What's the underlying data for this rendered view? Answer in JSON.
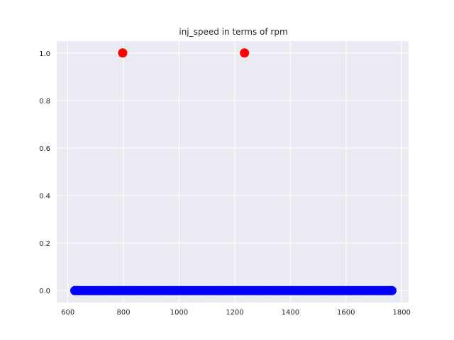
{
  "chart_data": {
    "type": "scatter",
    "title": "inj_speed in terms of rpm",
    "xlabel": "",
    "ylabel": "",
    "xlim": [
      560,
      1825
    ],
    "ylim": [
      -0.05,
      1.05
    ],
    "x_ticks": [
      600,
      800,
      1000,
      1200,
      1400,
      1600,
      1800
    ],
    "y_ticks": [
      0.0,
      0.2,
      0.4,
      0.6,
      0.8,
      1.0
    ],
    "grid": true,
    "background": "#eaeaf2",
    "series": [
      {
        "color": "#0000ff",
        "points": [
          [
            625,
            0
          ],
          [
            630,
            0
          ],
          [
            635,
            0
          ],
          [
            640,
            0
          ],
          [
            648,
            0
          ],
          [
            655,
            0
          ],
          [
            662,
            0
          ],
          [
            670,
            0
          ],
          [
            678,
            0
          ],
          [
            685,
            0
          ],
          [
            692,
            0
          ],
          [
            700,
            0
          ],
          [
            708,
            0
          ],
          [
            715,
            0
          ],
          [
            722,
            0
          ],
          [
            730,
            0
          ],
          [
            738,
            0
          ],
          [
            745,
            0
          ],
          [
            752,
            0
          ],
          [
            760,
            0
          ],
          [
            768,
            0
          ],
          [
            775,
            0
          ],
          [
            782,
            0
          ],
          [
            790,
            0
          ],
          [
            798,
            0
          ],
          [
            805,
            0
          ],
          [
            812,
            0
          ],
          [
            820,
            0
          ],
          [
            828,
            0
          ],
          [
            835,
            0
          ],
          [
            842,
            0
          ],
          [
            850,
            0
          ],
          [
            858,
            0
          ],
          [
            865,
            0
          ],
          [
            872,
            0
          ],
          [
            880,
            0
          ],
          [
            888,
            0
          ],
          [
            895,
            0
          ],
          [
            902,
            0
          ],
          [
            910,
            0
          ],
          [
            918,
            0
          ],
          [
            925,
            0
          ],
          [
            932,
            0
          ],
          [
            940,
            0
          ],
          [
            948,
            0
          ],
          [
            955,
            0
          ],
          [
            962,
            0
          ],
          [
            970,
            0
          ],
          [
            978,
            0
          ],
          [
            985,
            0
          ],
          [
            992,
            0
          ],
          [
            1000,
            0
          ],
          [
            1008,
            0
          ],
          [
            1015,
            0
          ],
          [
            1022,
            0
          ],
          [
            1030,
            0
          ],
          [
            1038,
            0
          ],
          [
            1045,
            0
          ],
          [
            1052,
            0
          ],
          [
            1060,
            0
          ],
          [
            1068,
            0
          ],
          [
            1075,
            0
          ],
          [
            1082,
            0
          ],
          [
            1090,
            0
          ],
          [
            1098,
            0
          ],
          [
            1105,
            0
          ],
          [
            1112,
            0
          ],
          [
            1120,
            0
          ],
          [
            1128,
            0
          ],
          [
            1135,
            0
          ],
          [
            1142,
            0
          ],
          [
            1150,
            0
          ],
          [
            1158,
            0
          ],
          [
            1165,
            0
          ],
          [
            1172,
            0
          ],
          [
            1180,
            0
          ],
          [
            1188,
            0
          ],
          [
            1195,
            0
          ],
          [
            1202,
            0
          ],
          [
            1210,
            0
          ],
          [
            1218,
            0
          ],
          [
            1225,
            0
          ],
          [
            1232,
            0
          ],
          [
            1240,
            0
          ],
          [
            1248,
            0
          ],
          [
            1255,
            0
          ],
          [
            1262,
            0
          ],
          [
            1270,
            0
          ],
          [
            1278,
            0
          ],
          [
            1285,
            0
          ],
          [
            1292,
            0
          ],
          [
            1300,
            0
          ],
          [
            1308,
            0
          ],
          [
            1315,
            0
          ],
          [
            1322,
            0
          ],
          [
            1330,
            0
          ],
          [
            1338,
            0
          ],
          [
            1345,
            0
          ],
          [
            1352,
            0
          ],
          [
            1360,
            0
          ],
          [
            1368,
            0
          ],
          [
            1375,
            0
          ],
          [
            1382,
            0
          ],
          [
            1390,
            0
          ],
          [
            1398,
            0
          ],
          [
            1405,
            0
          ],
          [
            1412,
            0
          ],
          [
            1420,
            0
          ],
          [
            1428,
            0
          ],
          [
            1435,
            0
          ],
          [
            1442,
            0
          ],
          [
            1450,
            0
          ],
          [
            1458,
            0
          ],
          [
            1465,
            0
          ],
          [
            1472,
            0
          ],
          [
            1480,
            0
          ],
          [
            1488,
            0
          ],
          [
            1495,
            0
          ],
          [
            1502,
            0
          ],
          [
            1510,
            0
          ],
          [
            1518,
            0
          ],
          [
            1525,
            0
          ],
          [
            1532,
            0
          ],
          [
            1540,
            0
          ],
          [
            1548,
            0
          ],
          [
            1555,
            0
          ],
          [
            1562,
            0
          ],
          [
            1570,
            0
          ],
          [
            1578,
            0
          ],
          [
            1585,
            0
          ],
          [
            1592,
            0
          ],
          [
            1600,
            0
          ],
          [
            1608,
            0
          ],
          [
            1615,
            0
          ],
          [
            1622,
            0
          ],
          [
            1630,
            0
          ],
          [
            1638,
            0
          ],
          [
            1645,
            0
          ],
          [
            1652,
            0
          ],
          [
            1660,
            0
          ],
          [
            1668,
            0
          ],
          [
            1675,
            0
          ],
          [
            1682,
            0
          ],
          [
            1690,
            0
          ],
          [
            1698,
            0
          ],
          [
            1705,
            0
          ],
          [
            1712,
            0
          ],
          [
            1720,
            0
          ],
          [
            1728,
            0
          ],
          [
            1735,
            0
          ],
          [
            1742,
            0
          ],
          [
            1750,
            0
          ],
          [
            1758,
            0
          ],
          [
            1765,
            0
          ]
        ]
      },
      {
        "color": "#ff0000",
        "points": [
          [
            797,
            1.0
          ],
          [
            1235,
            1.0
          ]
        ]
      }
    ]
  }
}
